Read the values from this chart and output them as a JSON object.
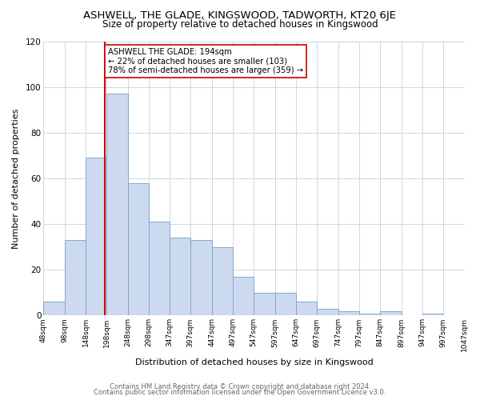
{
  "title": "ASHWELL, THE GLADE, KINGSWOOD, TADWORTH, KT20 6JE",
  "subtitle": "Size of property relative to detached houses in Kingswood",
  "xlabel": "Distribution of detached houses by size in Kingswood",
  "ylabel": "Number of detached properties",
  "bar_color": "#ccd9ee",
  "bar_edge_color": "#7fa8d0",
  "background_color": "#ffffff",
  "grid_color": "#c8d0dc",
  "bins": [
    48,
    98,
    148,
    198,
    248,
    298,
    347,
    397,
    447,
    497,
    547,
    597,
    647,
    697,
    747,
    797,
    847,
    897,
    947,
    997,
    1047
  ],
  "values": [
    6,
    33,
    69,
    97,
    58,
    41,
    34,
    33,
    30,
    17,
    10,
    10,
    6,
    3,
    2,
    1,
    2,
    0,
    1
  ],
  "tick_labels": [
    "48sqm",
    "98sqm",
    "148sqm",
    "198sqm",
    "248sqm",
    "298sqm",
    "347sqm",
    "397sqm",
    "447sqm",
    "497sqm",
    "547sqm",
    "597sqm",
    "647sqm",
    "697sqm",
    "747sqm",
    "797sqm",
    "847sqm",
    "897sqm",
    "947sqm",
    "997sqm",
    "1047sqm"
  ],
  "property_line_x": 194,
  "property_line_color": "#cc0000",
  "annotation_line1": "ASHWELL THE GLADE: 194sqm",
  "annotation_line2": "← 22% of detached houses are smaller (103)",
  "annotation_line3": "78% of semi-detached houses are larger (359) →",
  "annotation_box_color": "#ffffff",
  "annotation_box_edge_color": "#cc0000",
  "ylim": [
    0,
    120
  ],
  "yticks": [
    0,
    20,
    40,
    60,
    80,
    100,
    120
  ],
  "footer_line1": "Contains HM Land Registry data © Crown copyright and database right 2024.",
  "footer_line2": "Contains public sector information licensed under the Open Government Licence v3.0."
}
